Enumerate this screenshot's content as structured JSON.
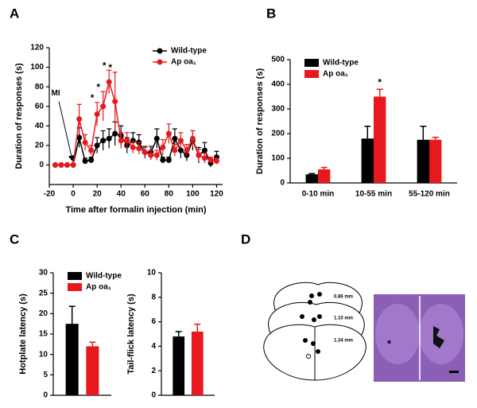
{
  "panel_labels": [
    "A",
    "B",
    "C",
    "D"
  ],
  "panel_d": {
    "section_labels": [
      "0.86 mm",
      "1.10 mm",
      "1.34 mm"
    ],
    "photo_marker": "*"
  },
  "chart_data": [
    {
      "type": "line",
      "xlabel": "Time after formalin injection (min)",
      "ylabel": "Duration of responses (s)",
      "x": [
        -15,
        -10,
        -5,
        0,
        5,
        10,
        15,
        20,
        25,
        30,
        35,
        40,
        45,
        50,
        55,
        60,
        65,
        70,
        75,
        80,
        85,
        90,
        95,
        100,
        105,
        110,
        115,
        120
      ],
      "xlim": [
        -20,
        125
      ],
      "xticks": [
        -20,
        0,
        20,
        40,
        60,
        80,
        100,
        120
      ],
      "ylim": [
        -20,
        120
      ],
      "yticks": [
        0,
        20,
        40,
        60,
        80,
        100,
        120
      ],
      "legend": "top-right",
      "annotations": [
        {
          "text": "MI",
          "x": 0
        }
      ],
      "series": [
        {
          "name": "Wild-type",
          "color": "#000000",
          "values": [
            0,
            0,
            0,
            0,
            28,
            4,
            5,
            20,
            25,
            27,
            32,
            30,
            20,
            25,
            23,
            13,
            13,
            27,
            5,
            5,
            27,
            15,
            10,
            25,
            10,
            15,
            2,
            8
          ],
          "errors": [
            0,
            0,
            0,
            0,
            10,
            3,
            3,
            8,
            10,
            10,
            12,
            10,
            8,
            8,
            8,
            6,
            6,
            10,
            3,
            3,
            10,
            8,
            6,
            10,
            8,
            8,
            4,
            6
          ]
        },
        {
          "name": "Ap oa₁",
          "color": "#e8191e",
          "values": [
            0,
            0,
            0,
            0,
            47,
            23,
            15,
            52,
            60,
            85,
            65,
            25,
            25,
            18,
            17,
            13,
            10,
            10,
            18,
            32,
            15,
            25,
            15,
            27,
            10,
            7,
            5,
            4
          ],
          "errors": [
            0,
            0,
            0,
            0,
            15,
            8,
            5,
            12,
            15,
            12,
            30,
            8,
            8,
            6,
            6,
            5,
            5,
            5,
            8,
            10,
            6,
            8,
            6,
            8,
            6,
            5,
            3,
            3
          ],
          "significance": [
            null,
            null,
            null,
            null,
            null,
            null,
            null,
            "*",
            "*",
            "*",
            "*",
            null,
            null,
            null,
            null,
            null,
            null,
            null,
            null,
            null,
            null,
            null,
            null,
            null,
            null,
            null,
            null,
            null
          ]
        }
      ]
    },
    {
      "type": "bar",
      "ylabel": "Duration of responses (s)",
      "categories": [
        "0-10 min",
        "10-55 min",
        "55-120 min"
      ],
      "ylim": [
        0,
        500
      ],
      "yticks": [
        0,
        100,
        200,
        300,
        400,
        500
      ],
      "legend": "top-left",
      "series": [
        {
          "name": "Wild-type",
          "color": "#000000",
          "values": [
            35,
            180,
            175
          ],
          "errors": [
            3,
            50,
            55
          ]
        },
        {
          "name": "Ap oa₁",
          "color": "#e8191e",
          "values": [
            55,
            350,
            175
          ],
          "errors": [
            8,
            30,
            10
          ],
          "significance": [
            null,
            "*",
            null
          ]
        }
      ]
    },
    {
      "type": "bar",
      "ylabel": "Hotplate latency (s)",
      "categories": [
        null
      ],
      "ylim": [
        0,
        30
      ],
      "yticks": [
        0,
        5,
        10,
        15,
        20,
        25,
        30
      ],
      "legend": "top-left",
      "series": [
        {
          "name": "Wild-type",
          "color": "#000000",
          "values": [
            17.5
          ],
          "errors": [
            4.3
          ]
        },
        {
          "name": "Ap oa₁",
          "color": "#e8191e",
          "values": [
            12
          ],
          "errors": [
            1
          ]
        }
      ]
    },
    {
      "type": "bar",
      "ylabel": "Tail-flick latency (s)",
      "categories": [
        null
      ],
      "ylim": [
        0,
        10
      ],
      "yticks": [
        0,
        2,
        4,
        6,
        8,
        10
      ],
      "series": [
        {
          "color": "#000000",
          "values": [
            4.8
          ],
          "errors": [
            0.4
          ]
        },
        {
          "color": "#e8191e",
          "values": [
            5.2
          ],
          "errors": [
            0.6
          ]
        }
      ]
    }
  ]
}
